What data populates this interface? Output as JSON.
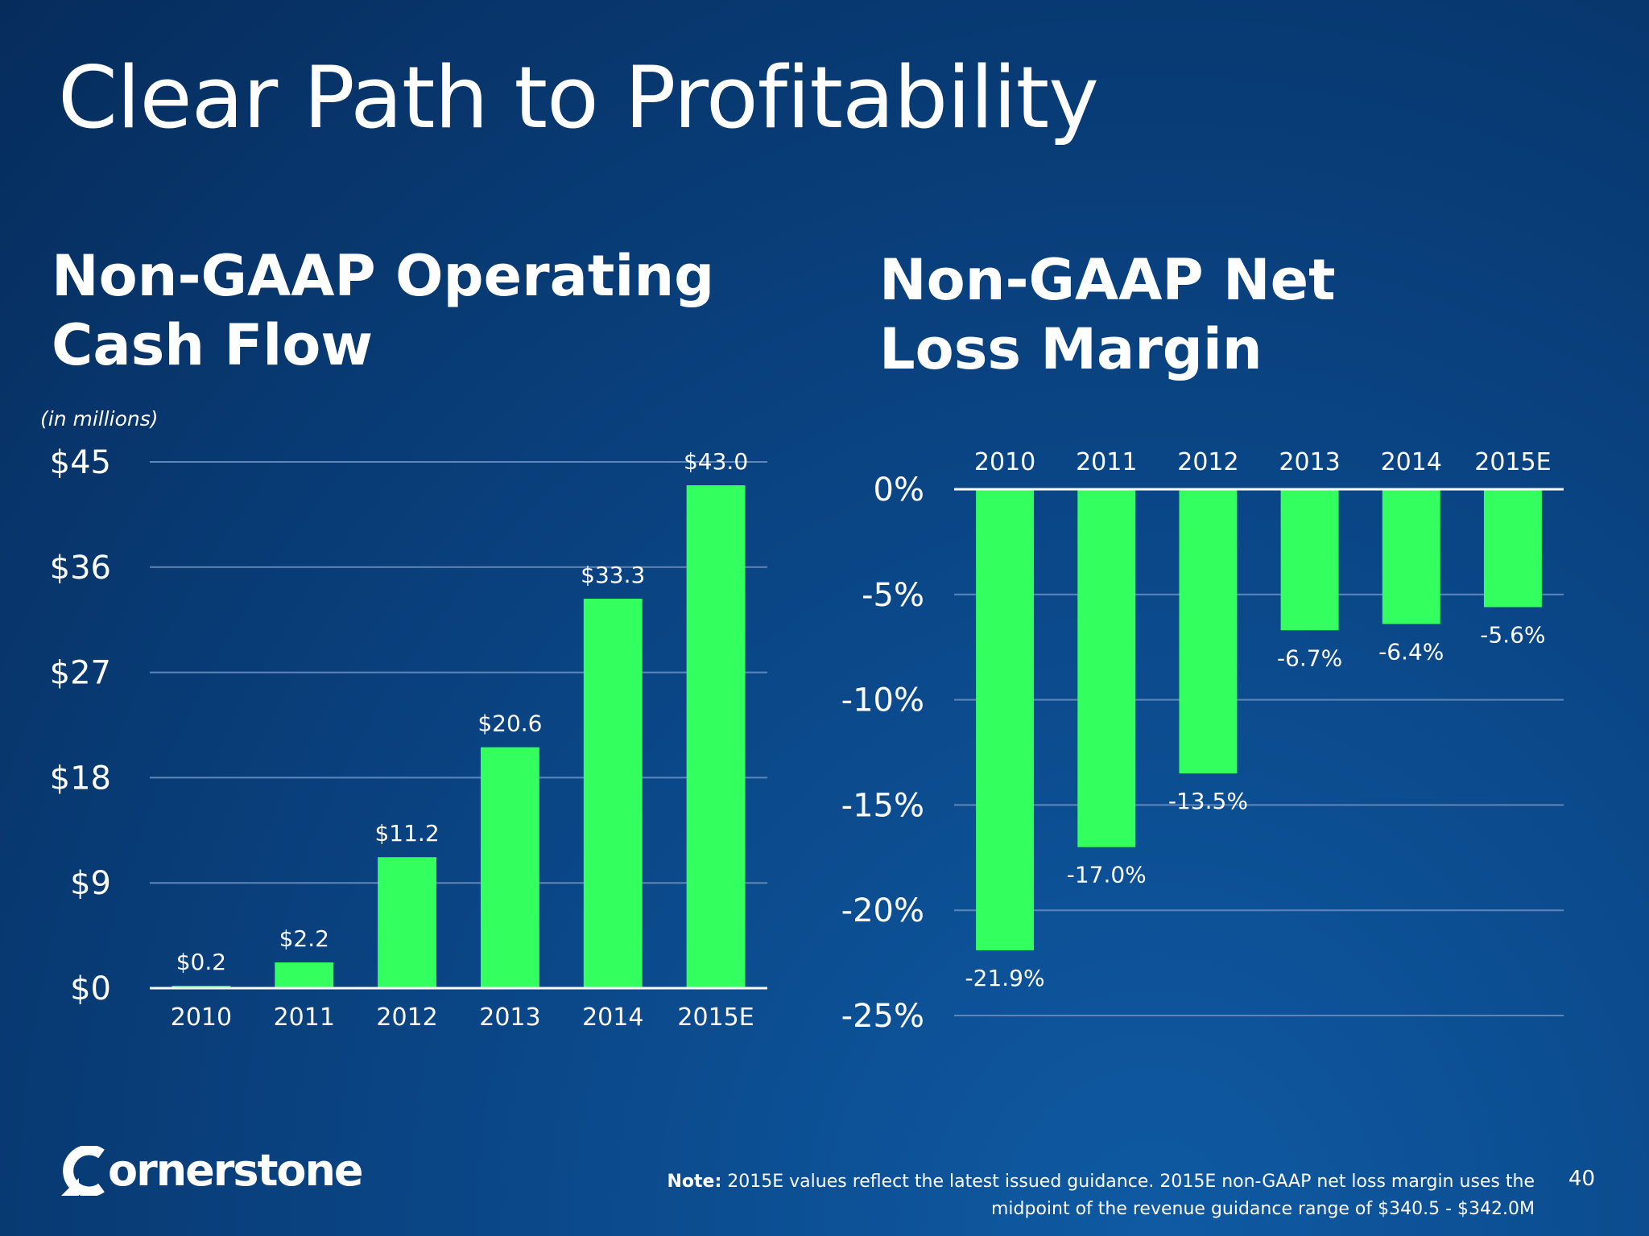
{
  "slide": {
    "title": "Clear Path to Profitability",
    "page_number": "40",
    "logo_text": "ornerstone",
    "units_note": "(in millions)",
    "note_label": "Note:",
    "note_line1": "2015E values reflect the latest issued guidance.  2015E non-GAAP net loss margin uses the",
    "note_line2": "midpoint of the revenue guidance range of $340.5 - $342.0M"
  },
  "colors": {
    "bar": "#33ff5e",
    "grid": "#5f86b8",
    "axis": "#ffffff",
    "text": "#ffffff"
  },
  "chart_data": [
    {
      "type": "bar",
      "title_lines": [
        "Non-GAAP Operating",
        "Cash Flow"
      ],
      "categories": [
        "2010",
        "2011",
        "2012",
        "2013",
        "2014",
        "2015E"
      ],
      "values": [
        0.2,
        2.2,
        11.2,
        20.6,
        33.3,
        43.0
      ],
      "data_labels": [
        "$0.2",
        "$2.2",
        "$11.2",
        "$20.6",
        "$33.3",
        "$43.0"
      ],
      "yticks": [
        0,
        9,
        18,
        27,
        36,
        45
      ],
      "ytick_labels": [
        "$0",
        "$9",
        "$18",
        "$27",
        "$36",
        "$45"
      ],
      "ylim": [
        0,
        45
      ],
      "grid": true,
      "legend": "none"
    },
    {
      "type": "bar",
      "title_lines": [
        "Non-GAAP Net",
        "Loss Margin"
      ],
      "categories": [
        "2010",
        "2011",
        "2012",
        "2013",
        "2014",
        "2015E"
      ],
      "values": [
        -21.9,
        -17.0,
        -13.5,
        -6.7,
        -6.4,
        -5.6
      ],
      "data_labels": [
        "-21.9%",
        "-17.0%",
        "-13.5%",
        "-6.7%",
        "-6.4%",
        "-5.6%"
      ],
      "yticks": [
        0,
        -5,
        -10,
        -15,
        -20,
        -25
      ],
      "ytick_labels": [
        "0%",
        "-5%",
        "-10%",
        "-15%",
        "-20%",
        "-25%"
      ],
      "ylim": [
        -25,
        0
      ],
      "category_axis": "top",
      "grid": true,
      "legend": "none"
    }
  ]
}
